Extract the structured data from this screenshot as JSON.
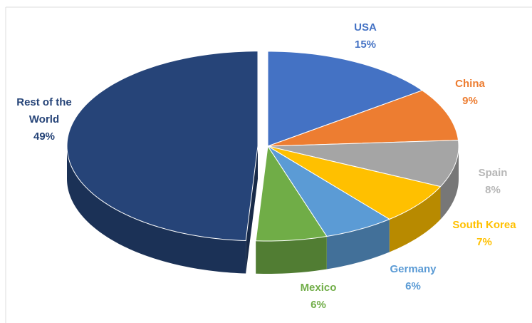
{
  "chart_data": {
    "type": "pie3d",
    "categories": [
      "USA",
      "China",
      "Spain",
      "South Korea",
      "Germany",
      "Mexico",
      "Rest of the World"
    ],
    "values": [
      15,
      9,
      8,
      7,
      6,
      6,
      49
    ],
    "value_labels": [
      "15%",
      "9%",
      "8%",
      "7%",
      "6%",
      "6%",
      "49%"
    ],
    "colors": [
      "#4472c4",
      "#ed7d31",
      "#a5a5a5",
      "#ffc000",
      "#5b9bd5",
      "#70ad47",
      "#264478"
    ]
  }
}
